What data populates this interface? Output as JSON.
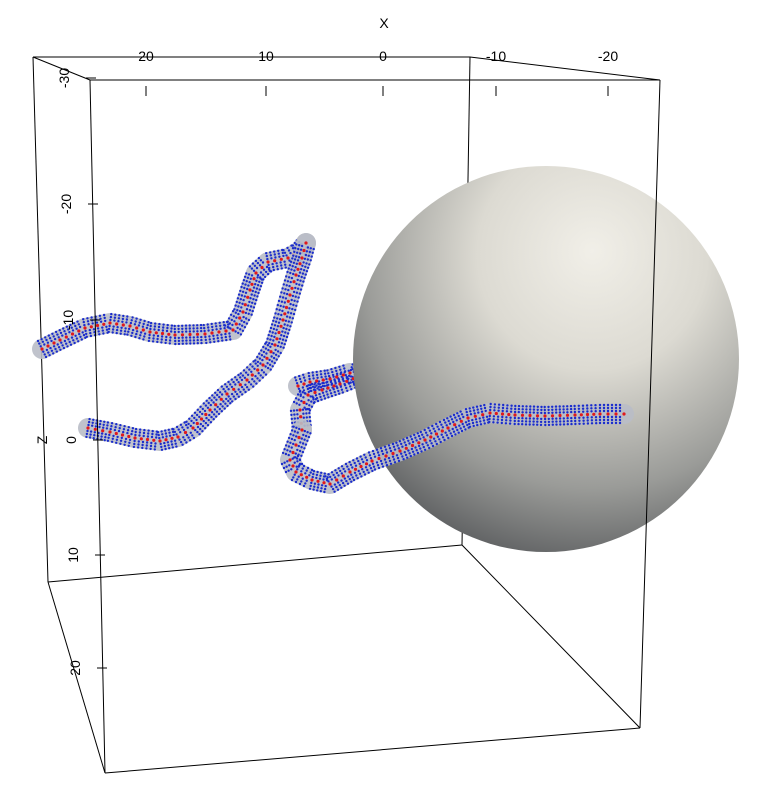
{
  "chart_data": {
    "type": "scatter",
    "projection": "3d-perspective-box",
    "axes": {
      "x": {
        "label": "X",
        "ticks": [
          "20",
          "10",
          "0",
          "-10",
          "-20"
        ]
      },
      "z": {
        "label": "Z",
        "ticks": [
          "-30",
          "-20",
          "-10",
          "0",
          "10",
          "20"
        ]
      }
    },
    "grid": false,
    "legend": "none",
    "colors": {
      "box": "#000000",
      "tube": "#b9bcc6",
      "outer_points": "#1a2ccc",
      "center_points": "#e0191c",
      "sphere_light": "#efede6",
      "sphere_dark": "#55575a"
    },
    "series": [
      {
        "kind": "tube-with-points",
        "note": "upper strand"
      },
      {
        "kind": "tube-with-points",
        "note": "lower strand"
      },
      {
        "kind": "tube-with-points",
        "note": "strand passing into sphere"
      },
      {
        "kind": "sphere"
      }
    ]
  }
}
